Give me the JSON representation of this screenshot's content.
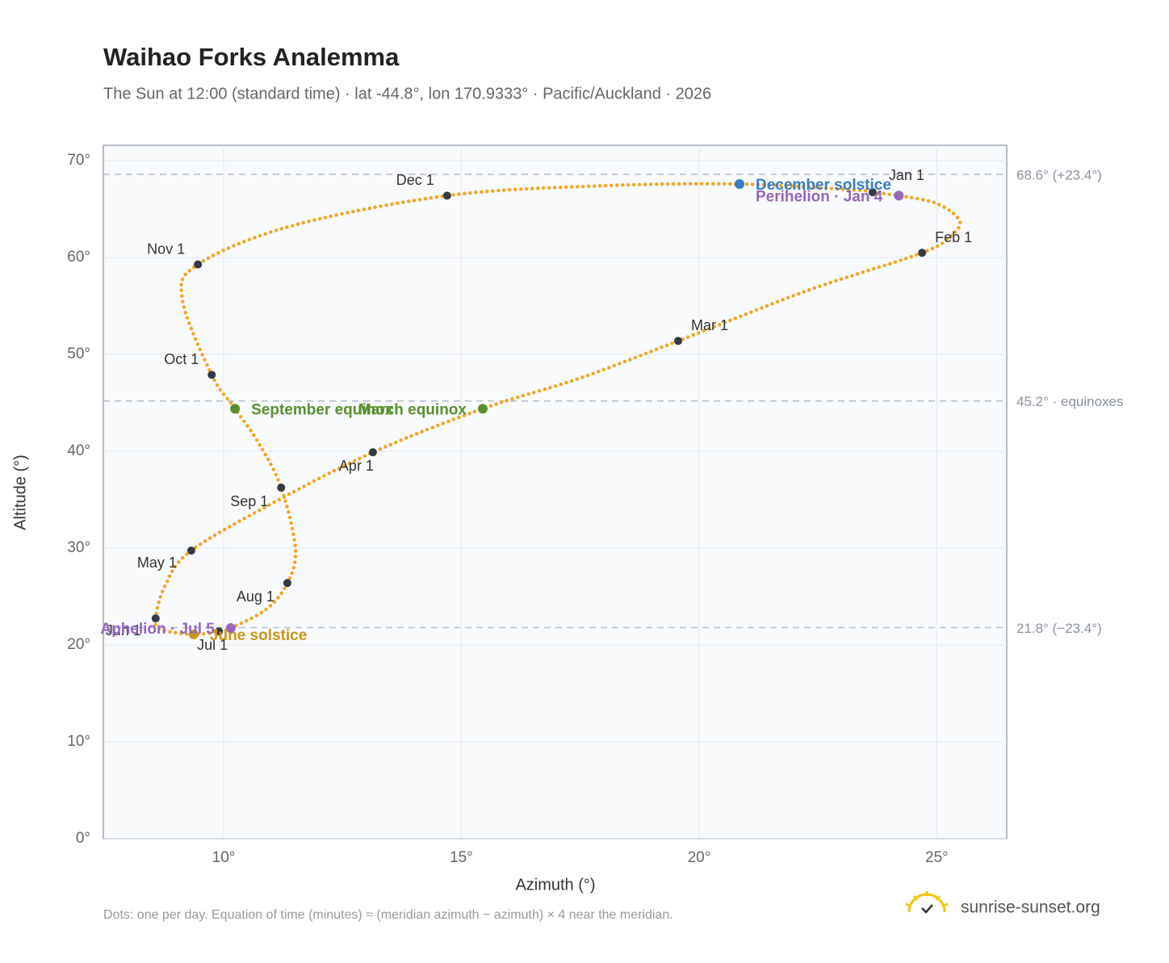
{
  "chart_data": {
    "type": "scatter",
    "title": "Waihao Forks Analemma",
    "subtitle": "The Sun at 12:00 (standard time) · lat -44.8°, lon 170.9333° · Pacific/Auckland · 2026",
    "x_label": "Azimuth (°)",
    "y_label": "Altitude (°)",
    "footnote": "Dots: one per day. Equation of time (minutes) ≈ (meridian azimuth − azimuth) × 4 near the meridian.",
    "brand": "sunrise-sunset.org",
    "color": "#f5a623",
    "x": [
      23.65,
      24.2,
      24.99,
      25.47,
      25.33,
      24.69,
      22.28,
      19.56,
      17.52,
      15.45,
      13.14,
      11.07,
      9.32,
      8.78,
      8.57,
      8.69,
      9.37,
      9.9,
      10.15,
      10.9,
      11.34,
      11.51,
      11.21,
      10.73,
      10.24,
      9.75,
      9.13,
      9.46,
      11.41,
      14.7,
      17.86,
      20.85,
      23.55
    ],
    "y": [
      66.75,
      66.4,
      65.6,
      63.9,
      62.4,
      60.5,
      56.6,
      51.4,
      47.6,
      44.4,
      39.9,
      34.75,
      29.75,
      26.25,
      22.75,
      21.6,
      21.1,
      21.4,
      21.75,
      23.7,
      26.4,
      29.9,
      36.25,
      40.9,
      44.4,
      47.9,
      55.75,
      59.3,
      63.25,
      66.4,
      67.4,
      67.6,
      66.9
    ],
    "xlim": [
      7.47,
      26.47
    ],
    "ylim": [
      0,
      71.6
    ],
    "xticks": [
      {
        "value": 10,
        "label": "10°"
      },
      {
        "value": 15,
        "label": "15°"
      },
      {
        "value": 20,
        "label": "20°"
      },
      {
        "value": 25,
        "label": "25°"
      }
    ],
    "yticks": [
      {
        "value": 0,
        "label": "0°"
      },
      {
        "value": 10,
        "label": "10°"
      },
      {
        "value": 20,
        "label": "20°"
      },
      {
        "value": 30,
        "label": "30°"
      },
      {
        "value": 40,
        "label": "40°"
      },
      {
        "value": 50,
        "label": "50°"
      },
      {
        "value": 60,
        "label": "60°"
      },
      {
        "value": 70,
        "label": "70°"
      }
    ],
    "grid": true,
    "reference_lines": [
      {
        "value": 68.6,
        "label": "68.6° (+23.4°)"
      },
      {
        "value": 45.2,
        "label": "45.2° · equinoxes"
      },
      {
        "value": 21.8,
        "label": "21.8° (−23.4°)"
      }
    ],
    "markers": [
      {
        "label": "Jan 1",
        "x": 23.65,
        "y": 66.75
      },
      {
        "label": "Feb 1",
        "x": 24.69,
        "y": 60.5
      },
      {
        "label": "Mar 1",
        "x": 19.56,
        "y": 51.4
      },
      {
        "label": "Apr 1",
        "x": 13.14,
        "y": 39.9
      },
      {
        "label": "May 1",
        "x": 9.32,
        "y": 29.75
      },
      {
        "label": "Jun 1",
        "x": 8.57,
        "y": 22.75
      },
      {
        "label": "Jul 1",
        "x": 9.9,
        "y": 21.4
      },
      {
        "label": "Aug 1",
        "x": 11.34,
        "y": 26.4
      },
      {
        "label": "Sep 1",
        "x": 11.21,
        "y": 36.25
      },
      {
        "label": "Oct 1",
        "x": 9.75,
        "y": 47.9
      },
      {
        "label": "Nov 1",
        "x": 9.46,
        "y": 59.3
      },
      {
        "label": "Dec 1",
        "x": 14.7,
        "y": 66.4
      }
    ],
    "marker_color": "#333a44",
    "events": [
      {
        "label": "December solstice",
        "x": 20.85,
        "y": 67.6,
        "color": "#3b7dc4"
      },
      {
        "label": "Perihelion · Jan 4",
        "x": 24.2,
        "y": 66.4,
        "color": "#9467bd"
      },
      {
        "label": "March equinox",
        "x": 15.45,
        "y": 44.4,
        "color": "#5a8f2e"
      },
      {
        "label": "September equinox",
        "x": 10.24,
        "y": 44.4,
        "color": "#5a8f2e"
      },
      {
        "label": "June solstice",
        "x": 9.37,
        "y": 21.1,
        "color": "#c8961a"
      },
      {
        "label": "Aphelion · Jul 5",
        "x": 10.15,
        "y": 21.75,
        "color": "#9467bd"
      }
    ]
  }
}
